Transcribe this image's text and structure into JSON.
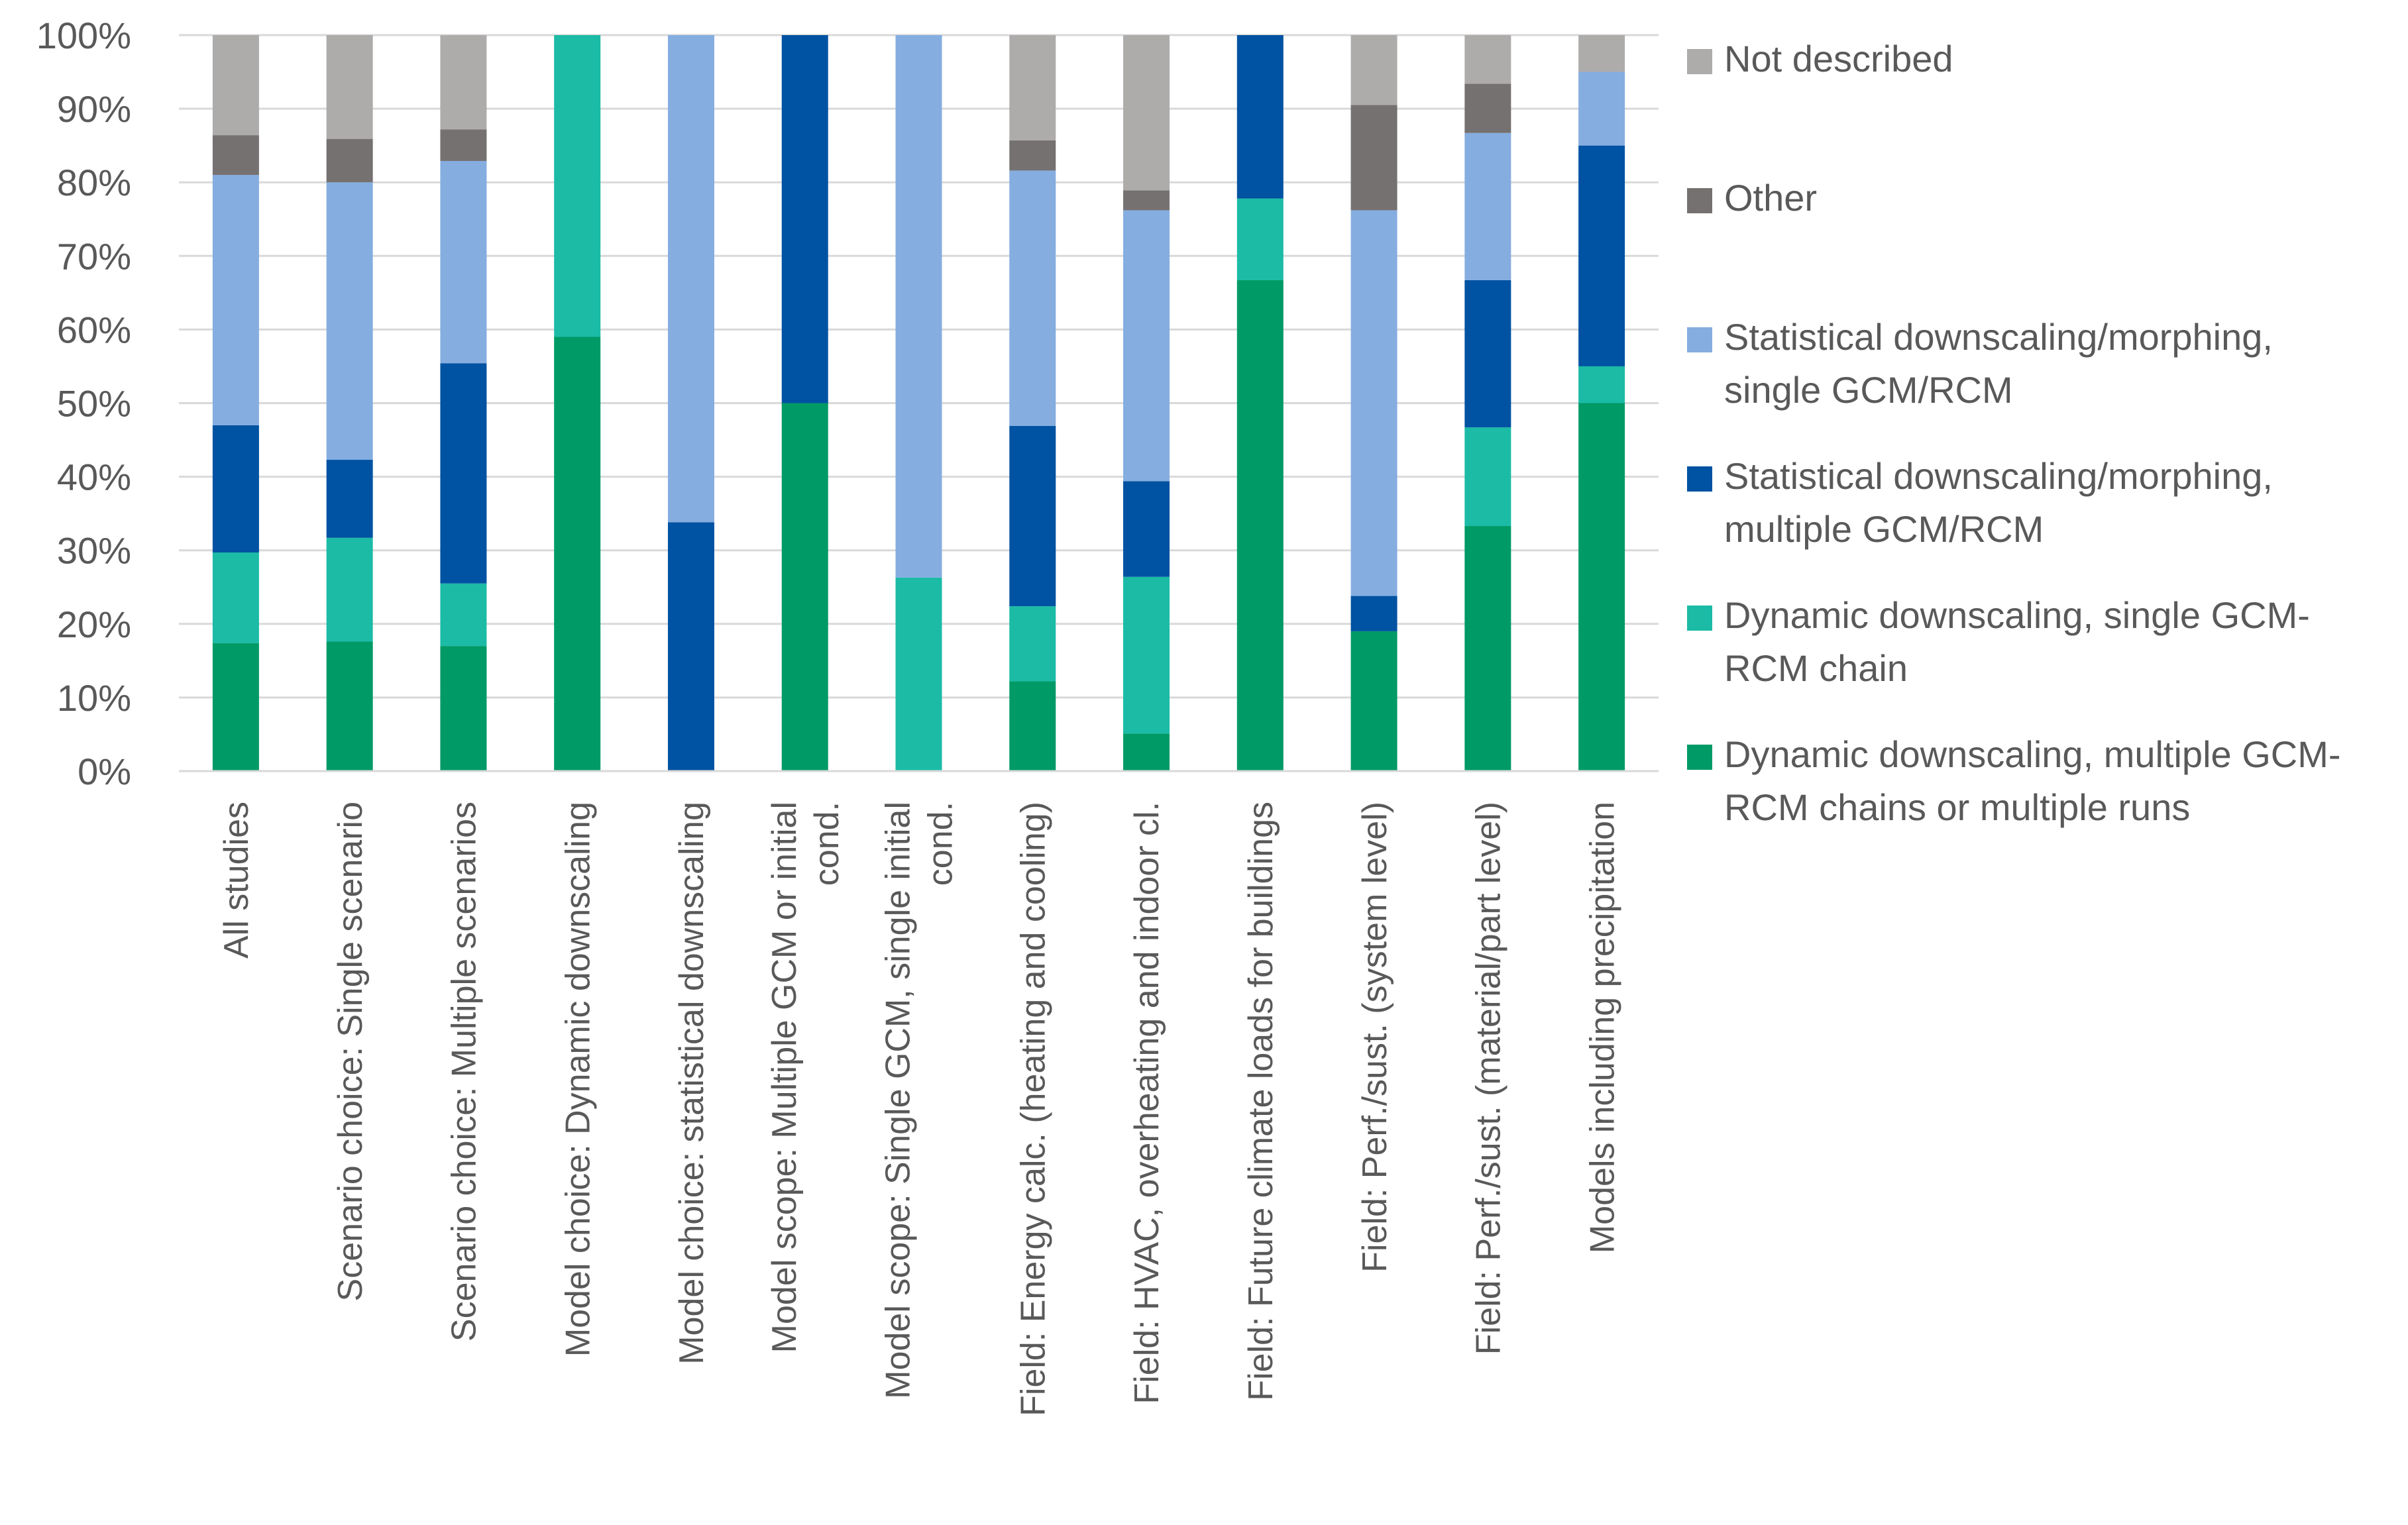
{
  "chart_data": {
    "type": "stacked-bar-100",
    "title": "",
    "xlabel": "",
    "ylabel": "",
    "ylim": [
      0,
      100
    ],
    "y_ticks": [
      "0%",
      "10%",
      "20%",
      "30%",
      "40%",
      "50%",
      "60%",
      "70%",
      "80%",
      "90%",
      "100%"
    ],
    "grid": true,
    "legend_position": "right",
    "categories": [
      [
        "All studies"
      ],
      [
        "Scenario choice: Single scenario"
      ],
      [
        "Scenario choice: Multiple scenarios"
      ],
      [
        "Model choice: Dynamic downscaling"
      ],
      [
        "Model choice: statistical downscaling"
      ],
      [
        "Model scope: Multiple GCM or initial",
        "cond."
      ],
      [
        "Model scope: Single GCM, single initial",
        "cond."
      ],
      [
        "Field: Energy calc. (heating and cooling)"
      ],
      [
        "Field: HVAC, overheating and indoor cl."
      ],
      [
        "Field: Future climate loads for buildings"
      ],
      [
        "Field: Perf./sust. (system level)"
      ],
      [
        "Field: Perf./sust. (material/part level)"
      ],
      [
        "Models including precipitation"
      ]
    ],
    "series": [
      {
        "name": [
          "Dynamic downscaling, multiple GCM-",
          "RCM chains or multiple runs"
        ],
        "color": "#009a66",
        "values": [
          17.4,
          17.6,
          17.0,
          59.0,
          0,
          50.0,
          0,
          12.2,
          5.1,
          66.7,
          19.0,
          33.3,
          50.0
        ]
      },
      {
        "name": [
          "Dynamic downscaling, single GCM-",
          "RCM chain"
        ],
        "color": "#1bbba6",
        "values": [
          12.3,
          14.1,
          8.5,
          41.0,
          0,
          0,
          26.3,
          10.2,
          21.3,
          11.1,
          0,
          13.4,
          5.0
        ]
      },
      {
        "name": [
          "Statistical downscaling/morphing,",
          "multiple GCM/RCM"
        ],
        "color": "#0052a2",
        "values": [
          17.3,
          10.6,
          29.9,
          0,
          33.8,
          50.0,
          0,
          24.5,
          13.0,
          22.2,
          4.8,
          20.0,
          30.0
        ]
      },
      {
        "name": [
          "Statistical downscaling/morphing,",
          "single GCM/RCM"
        ],
        "color": "#85ade0",
        "values": [
          34.0,
          37.7,
          27.5,
          0,
          66.2,
          0,
          73.7,
          34.7,
          36.8,
          0,
          52.4,
          20.0,
          10.0
        ]
      },
      {
        "name": [
          "Other"
        ],
        "color": "#767171",
        "values": [
          5.4,
          5.9,
          4.3,
          0,
          0,
          0,
          0,
          4.1,
          2.7,
          0,
          14.3,
          6.7,
          0
        ]
      },
      {
        "name": [
          "Not described"
        ],
        "color": "#aeabab",
        "values": [
          13.6,
          14.1,
          12.8,
          0,
          0,
          0,
          0,
          14.3,
          21.1,
          0,
          9.5,
          6.6,
          5.0
        ]
      }
    ]
  }
}
